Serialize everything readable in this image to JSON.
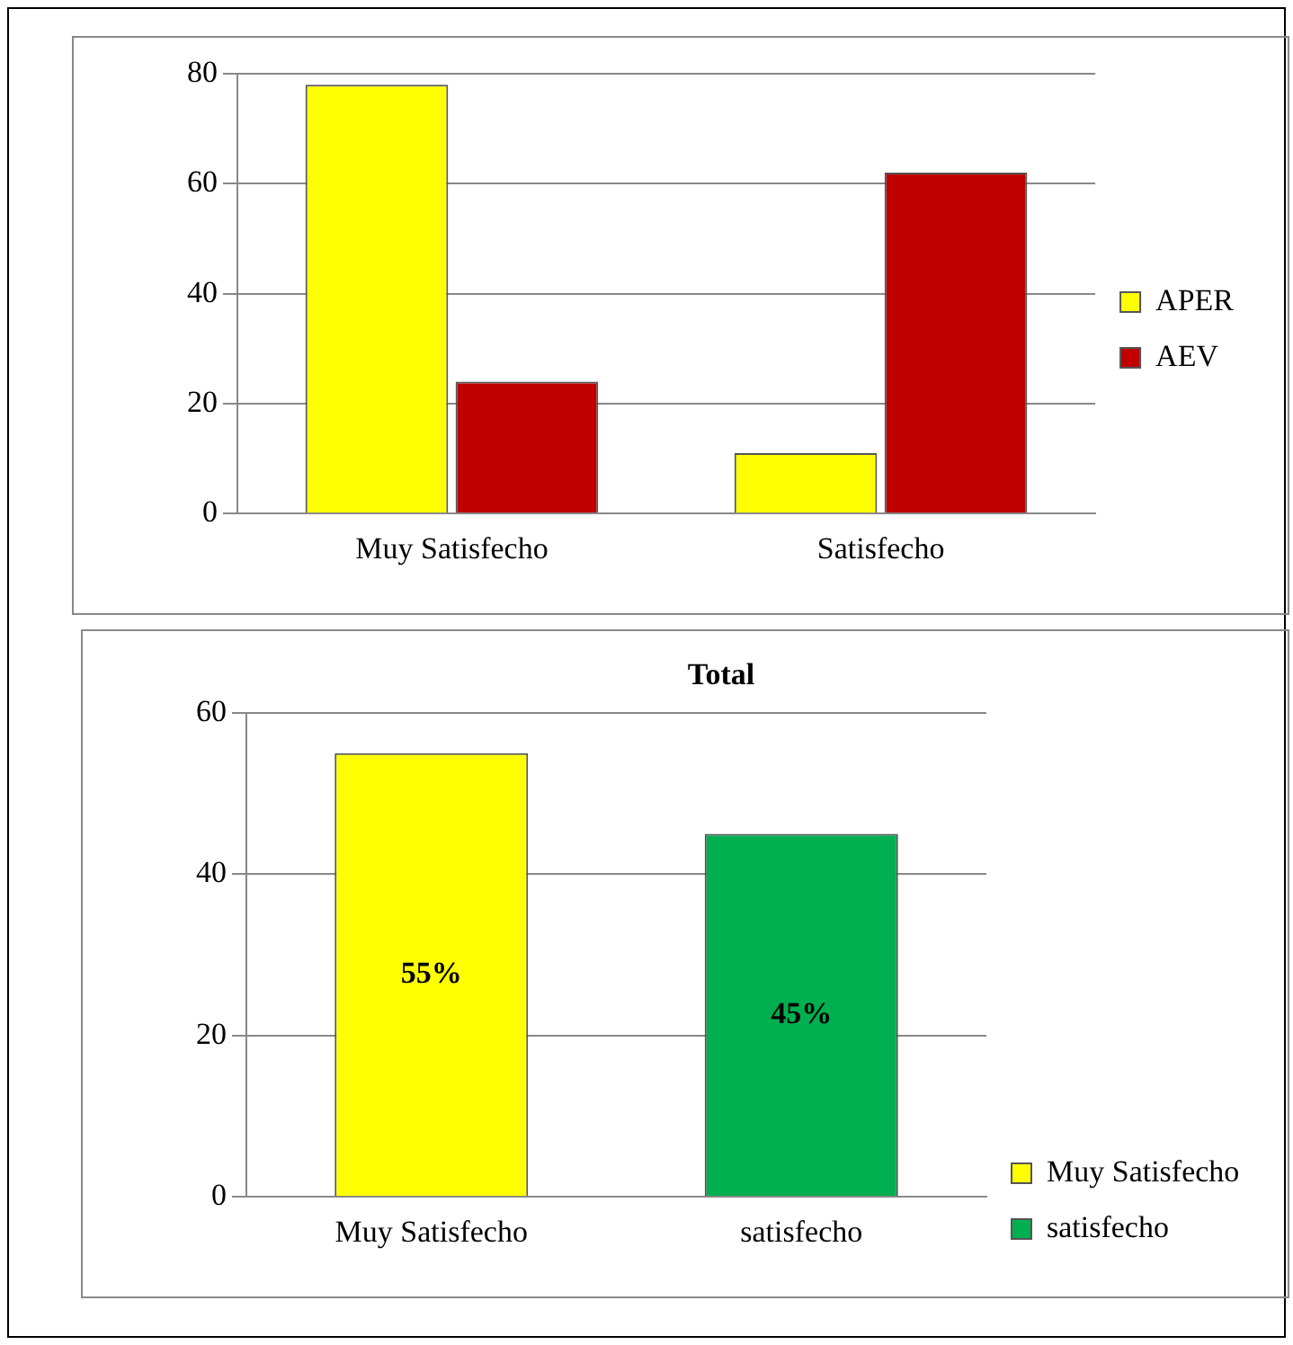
{
  "chart_data": [
    {
      "type": "bar",
      "categories": [
        "Muy Satisfecho",
        "Satisfecho"
      ],
      "series": [
        {
          "name": "APER",
          "color": "#ffff00",
          "values": [
            78,
            11
          ]
        },
        {
          "name": "AEV",
          "color": "#c00000",
          "values": [
            24,
            62
          ]
        }
      ],
      "ylim": [
        0,
        80
      ],
      "yticks": [
        0,
        20,
        40,
        60,
        80
      ],
      "grid": "y",
      "legend": "right"
    },
    {
      "type": "bar",
      "title": "Total",
      "categories": [
        "Muy Satisfecho",
        "satisfecho"
      ],
      "series": [
        {
          "name": "Muy Satisfecho",
          "color": "#ffff00",
          "values": [
            55,
            null
          ],
          "value_labels": [
            "55%",
            null
          ]
        },
        {
          "name": "satisfecho",
          "color": "#00b050",
          "values": [
            null,
            45
          ],
          "value_labels": [
            null,
            "45%"
          ]
        }
      ],
      "ylim": [
        0,
        60
      ],
      "yticks": [
        0,
        20,
        40,
        60
      ],
      "grid": "y",
      "legend": "bottom right"
    }
  ]
}
